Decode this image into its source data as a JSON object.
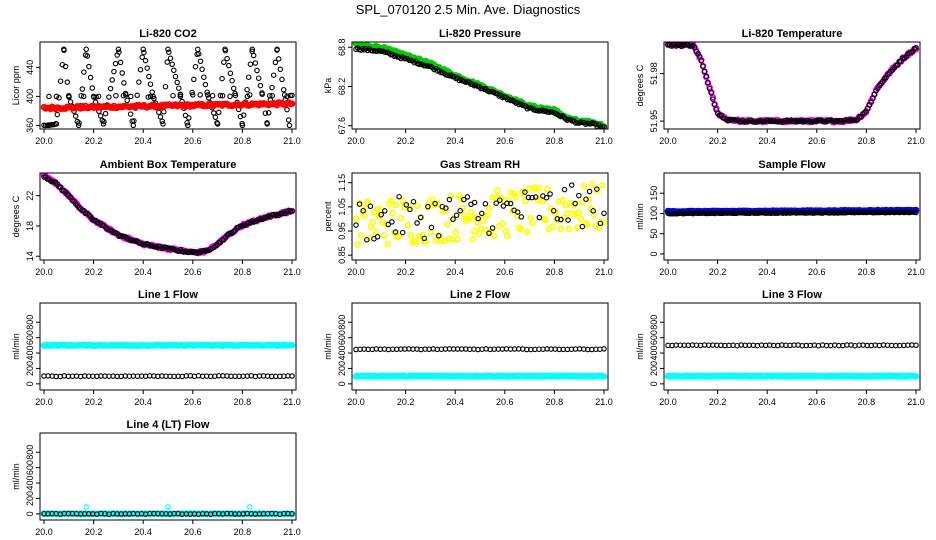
{
  "figure_title": "SPL_070120  2.5 Min. Ave. Diagnostics",
  "colors": {
    "black": "#000000",
    "red": "#ff0000",
    "green": "#00cc00",
    "magenta": "#ff00ff",
    "yellow": "#ffff00",
    "blue": "#0000ff",
    "cyan": "#00ffff"
  },
  "chart_data": [
    {
      "type": "scatter",
      "title": "Li-820 CO2",
      "ylabel": "Licor ppm",
      "xlim": [
        20.0,
        21.0
      ],
      "ylim": [
        355,
        475
      ],
      "xticks": [
        "20.0",
        "20.2",
        "20.4",
        "20.6",
        "20.8",
        "21.0"
      ],
      "yticks": [
        360,
        400,
        440
      ],
      "series": [
        {
          "name": "black",
          "color": "black",
          "shape": "circle",
          "x": [
            20.02,
            20.05,
            20.08,
            20.1,
            20.14,
            20.17,
            20.2,
            20.24,
            20.3,
            20.33,
            20.36,
            20.4,
            20.44,
            20.48,
            20.5,
            20.55,
            20.58,
            20.62,
            20.66,
            20.7,
            20.73,
            20.77,
            20.8,
            20.84,
            20.88,
            20.9,
            20.94,
            20.97,
            20.99,
            20.02,
            20.1,
            20.16,
            20.21,
            20.29,
            20.35,
            20.43,
            20.52,
            20.6,
            20.68,
            20.75,
            20.83,
            20.91,
            20.98,
            20.05,
            20.15,
            20.22,
            20.32,
            20.42,
            20.55,
            20.63,
            20.72,
            20.82,
            20.92
          ],
          "y": [
            360,
            362,
            465,
            400,
            360,
            465,
            400,
            362,
            465,
            402,
            360,
            465,
            400,
            362,
            465,
            403,
            360,
            465,
            402,
            362,
            465,
            404,
            360,
            465,
            403,
            362,
            465,
            402,
            360,
            400,
            401,
            400,
            399,
            401,
            400,
            400,
            401,
            402,
            401,
            400,
            402,
            401,
            400,
            400,
            401,
            400,
            401,
            399,
            400,
            402,
            401,
            400,
            401
          ]
        },
        {
          "name": "red",
          "color": "red",
          "shape": "dense",
          "x": [
            20.0,
            21.0
          ],
          "y": [
            384,
            390
          ]
        }
      ]
    },
    {
      "type": "scatter",
      "title": "Li-820 Pressure",
      "ylabel": "kPa",
      "xlim": [
        20.0,
        21.0
      ],
      "ylim": [
        67.55,
        68.88
      ],
      "xticks": [
        "20.0",
        "20.2",
        "20.4",
        "20.6",
        "20.8",
        "21.0"
      ],
      "yticks": [
        67.6,
        68.2,
        68.8
      ],
      "series": [
        {
          "name": "green",
          "color": "green",
          "shape": "trend",
          "x": [
            20.0,
            20.1,
            20.2,
            20.3,
            20.4,
            20.5,
            20.6,
            20.7,
            20.8,
            20.85,
            20.9,
            20.95,
            21.0
          ],
          "y": [
            68.84,
            68.8,
            68.68,
            68.55,
            68.37,
            68.22,
            68.06,
            67.9,
            67.84,
            67.72,
            67.67,
            67.65,
            67.6
          ]
        },
        {
          "name": "black",
          "color": "black",
          "shape": "trend",
          "x": [
            20.0,
            20.1,
            20.2,
            20.3,
            20.4,
            20.5,
            20.6,
            20.7,
            20.8,
            20.85,
            20.9,
            20.95,
            21.0
          ],
          "y": [
            68.78,
            68.74,
            68.62,
            68.5,
            68.33,
            68.19,
            68.03,
            67.86,
            67.8,
            67.7,
            67.64,
            67.63,
            67.57
          ]
        }
      ]
    },
    {
      "type": "scatter",
      "title": "Li-820 Temperature",
      "ylabel": "degrees C",
      "xlim": [
        20.0,
        21.0
      ],
      "ylim": [
        51.945,
        52.0
      ],
      "xticks": [
        "20.0",
        "20.2",
        "20.4",
        "20.6",
        "20.8",
        "21.0"
      ],
      "yticks": [
        51.95,
        51.98
      ],
      "series": [
        {
          "name": "magenta",
          "color": "magenta",
          "shape": "trend",
          "x": [
            20.0,
            20.1,
            20.13,
            20.17,
            20.2,
            20.24,
            20.3,
            20.5,
            20.7,
            20.76,
            20.8,
            20.84,
            20.9,
            20.95,
            21.0
          ],
          "y": [
            51.998,
            51.998,
            51.99,
            51.97,
            51.955,
            51.951,
            51.95,
            51.95,
            51.95,
            51.951,
            51.956,
            51.97,
            51.982,
            51.99,
            51.996
          ]
        },
        {
          "name": "black",
          "color": "black",
          "shape": "trend",
          "x": [
            20.0,
            20.1,
            20.13,
            20.17,
            20.2,
            20.24,
            20.3,
            20.5,
            20.7,
            20.76,
            20.8,
            20.84,
            20.9,
            20.95,
            21.0
          ],
          "y": [
            51.998,
            51.998,
            51.99,
            51.97,
            51.955,
            51.951,
            51.95,
            51.95,
            51.95,
            51.951,
            51.956,
            51.97,
            51.982,
            51.99,
            51.996
          ]
        }
      ]
    },
    {
      "type": "scatter",
      "title": "Ambient Box Temperature",
      "ylabel": "degrees C",
      "xlim": [
        20.0,
        21.0
      ],
      "ylim": [
        13.5,
        25.0
      ],
      "xticks": [
        "20.0",
        "20.2",
        "20.4",
        "20.6",
        "20.8",
        "21.0"
      ],
      "yticks": [
        14,
        18,
        22
      ],
      "series": [
        {
          "name": "magenta",
          "color": "magenta",
          "shape": "trend",
          "x": [
            20.0,
            20.05,
            20.1,
            20.15,
            20.2,
            20.3,
            20.4,
            20.5,
            20.6,
            20.65,
            20.7,
            20.75,
            20.8,
            20.9,
            21.0
          ],
          "y": [
            24.6,
            23.6,
            22.0,
            20.2,
            18.8,
            16.8,
            15.6,
            15.0,
            14.5,
            14.6,
            15.6,
            17.0,
            18.1,
            19.2,
            20.0
          ]
        },
        {
          "name": "black",
          "color": "black",
          "shape": "trend",
          "x": [
            20.0,
            20.05,
            20.1,
            20.15,
            20.2,
            20.3,
            20.4,
            20.5,
            20.6,
            20.65,
            20.7,
            20.75,
            20.8,
            20.9,
            21.0
          ],
          "y": [
            24.6,
            23.6,
            22.0,
            20.2,
            18.8,
            16.8,
            15.6,
            15.0,
            14.5,
            14.6,
            15.6,
            17.0,
            18.1,
            19.2,
            20.0
          ]
        }
      ]
    },
    {
      "type": "scatter",
      "title": "Gas Stream RH",
      "ylabel": "percent",
      "xlim": [
        20.0,
        21.0
      ],
      "ylim": [
        0.83,
        1.19
      ],
      "xticks": [
        "20.0",
        "20.2",
        "20.4",
        "20.6",
        "20.8",
        "21.0"
      ],
      "yticks": [
        0.85,
        0.95,
        1.05,
        1.15
      ],
      "series": [
        {
          "name": "yellow",
          "color": "yellow",
          "shape": "noisy",
          "x": [
            20.0,
            21.0
          ],
          "y": [
            0.98,
            1.05
          ],
          "spread": 0.1
        },
        {
          "name": "black",
          "color": "black",
          "shape": "noisy-sparse",
          "x": [
            20.0,
            21.0
          ],
          "y": [
            0.99,
            1.06
          ],
          "spread": 0.09
        }
      ]
    },
    {
      "type": "scatter",
      "title": "Sample Flow",
      "ylabel": "ml/min",
      "xlim": [
        20.0,
        21.0
      ],
      "ylim": [
        -15,
        200
      ],
      "xticks": [
        "20.0",
        "20.2",
        "20.4",
        "20.6",
        "20.8",
        "21.0"
      ],
      "yticks": [
        0,
        50,
        100,
        150
      ],
      "series": [
        {
          "name": "blue",
          "color": "blue",
          "shape": "flat",
          "x": [
            20.0,
            21.0
          ],
          "y": [
            105,
            108
          ]
        },
        {
          "name": "black",
          "color": "black",
          "shape": "flat",
          "x": [
            20.0,
            21.0
          ],
          "y": [
            100,
            103
          ]
        }
      ]
    },
    {
      "type": "scatter",
      "title": "Line 1 Flow",
      "ylabel": "ml/min",
      "xlim": [
        20.0,
        21.0
      ],
      "ylim": [
        -80,
        1050
      ],
      "xticks": [
        "20.0",
        "20.2",
        "20.4",
        "20.6",
        "20.8",
        "21.0"
      ],
      "yticks": [
        0,
        200,
        400,
        600,
        800
      ],
      "series": [
        {
          "name": "cyan",
          "color": "cyan",
          "shape": "flat",
          "x": [
            20.0,
            21.0
          ],
          "y": [
            500,
            500
          ]
        },
        {
          "name": "black",
          "color": "black",
          "shape": "flat-open",
          "x": [
            20.0,
            21.0
          ],
          "y": [
            100,
            100
          ]
        }
      ]
    },
    {
      "type": "scatter",
      "title": "Line 2 Flow",
      "ylabel": "ml/min",
      "xlim": [
        20.0,
        21.0
      ],
      "ylim": [
        -80,
        1050
      ],
      "xticks": [
        "20.0",
        "20.2",
        "20.4",
        "20.6",
        "20.8",
        "21.0"
      ],
      "yticks": [
        0,
        200,
        400,
        600,
        800
      ],
      "series": [
        {
          "name": "cyan",
          "color": "cyan",
          "shape": "flat",
          "x": [
            20.0,
            21.0
          ],
          "y": [
            100,
            100
          ]
        },
        {
          "name": "black",
          "color": "black",
          "shape": "flat-open",
          "x": [
            20.0,
            21.0
          ],
          "y": [
            450,
            450
          ]
        }
      ]
    },
    {
      "type": "scatter",
      "title": "Line 3 Flow",
      "ylabel": "ml/min",
      "xlim": [
        20.0,
        21.0
      ],
      "ylim": [
        -80,
        1050
      ],
      "xticks": [
        "20.0",
        "20.2",
        "20.4",
        "20.6",
        "20.8",
        "21.0"
      ],
      "yticks": [
        0,
        200,
        400,
        600,
        800
      ],
      "series": [
        {
          "name": "cyan",
          "color": "cyan",
          "shape": "flat",
          "x": [
            20.0,
            21.0
          ],
          "y": [
            100,
            100
          ]
        },
        {
          "name": "black",
          "color": "black",
          "shape": "flat-open",
          "x": [
            20.0,
            21.0
          ],
          "y": [
            500,
            500
          ]
        }
      ]
    },
    {
      "type": "scatter",
      "title": "Line 4 (LT) Flow",
      "ylabel": "ml/min",
      "xlim": [
        20.0,
        21.0
      ],
      "ylim": [
        -80,
        1050
      ],
      "xticks": [
        "20.0",
        "20.2",
        "20.4",
        "20.6",
        "20.8",
        "21.0"
      ],
      "yticks": [
        0,
        200,
        400,
        600,
        800
      ],
      "series": [
        {
          "name": "cyan",
          "color": "cyan",
          "shape": "flat",
          "x": [
            20.0,
            21.0
          ],
          "y": [
            0,
            0
          ],
          "outliers": {
            "x": [
              20.17,
              20.5,
              20.83
            ],
            "y": [
              90,
              90,
              90
            ]
          }
        },
        {
          "name": "black",
          "color": "black",
          "shape": "flat-open",
          "x": [
            20.0,
            21.0
          ],
          "y": [
            0,
            0
          ]
        }
      ]
    }
  ]
}
